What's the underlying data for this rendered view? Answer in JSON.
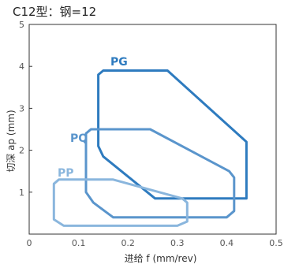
{
  "chart_data": {
    "type": "line",
    "title": "C12型：钢=12",
    "xlabel": "进给 f (mm/rev)",
    "ylabel": "切深 ap (mm)",
    "xlim": [
      0,
      0.5
    ],
    "ylim": [
      0,
      5
    ],
    "x_ticks": [
      "0",
      "0.1",
      "0.2",
      "0.3",
      "0.4",
      "0.5"
    ],
    "y_ticks": [
      "1",
      "2",
      "3",
      "4",
      "5"
    ],
    "grid": false,
    "series": [
      {
        "name": "PG",
        "color": "#2e7bbf",
        "points": [
          [
            0.15,
            3.9
          ],
          [
            0.28,
            3.9
          ],
          [
            0.44,
            2.2
          ],
          [
            0.44,
            0.85
          ],
          [
            0.255,
            0.85
          ],
          [
            0.15,
            1.85
          ],
          [
            0.14,
            2.1
          ],
          [
            0.14,
            3.8
          ]
        ]
      },
      {
        "name": "PQ",
        "color": "#5a95cc",
        "points": [
          [
            0.125,
            2.5
          ],
          [
            0.245,
            2.5
          ],
          [
            0.405,
            1.5
          ],
          [
            0.415,
            1.35
          ],
          [
            0.415,
            0.55
          ],
          [
            0.4,
            0.4
          ],
          [
            0.17,
            0.4
          ],
          [
            0.13,
            0.75
          ],
          [
            0.115,
            1.0
          ],
          [
            0.115,
            2.4
          ]
        ]
      },
      {
        "name": "PP",
        "color": "#8ab6dd",
        "points": [
          [
            0.06,
            1.3
          ],
          [
            0.17,
            1.3
          ],
          [
            0.31,
            0.85
          ],
          [
            0.32,
            0.75
          ],
          [
            0.32,
            0.3
          ],
          [
            0.3,
            0.2
          ],
          [
            0.07,
            0.2
          ],
          [
            0.05,
            0.35
          ],
          [
            0.05,
            1.2
          ]
        ]
      }
    ]
  }
}
